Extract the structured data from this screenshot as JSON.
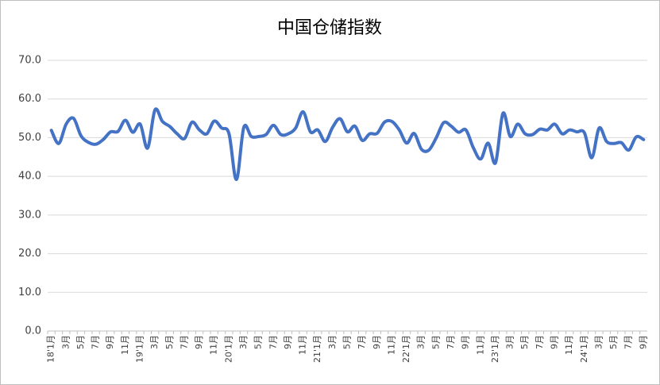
{
  "chart_data": {
    "type": "line",
    "title": "中国仓储指数",
    "categories": [
      "18'1月",
      null,
      "3月",
      null,
      "5月",
      null,
      "7月",
      null,
      "9月",
      null,
      "11月",
      null,
      "19'1月",
      null,
      "3月",
      null,
      "5月",
      null,
      "7月",
      null,
      "9月",
      null,
      "11月",
      null,
      "20'1月",
      null,
      "3月",
      null,
      "5月",
      null,
      "7月",
      null,
      "9月",
      null,
      "11月",
      null,
      "21'1月",
      null,
      "3月",
      null,
      "5月",
      null,
      "7月",
      null,
      "9月",
      null,
      "11月",
      null,
      "22'1月",
      null,
      "3月",
      null,
      "5月",
      null,
      "7月",
      null,
      "9月",
      null,
      "11月",
      null,
      "23'1月",
      null,
      "3月",
      null,
      "5月",
      null,
      "7月",
      null,
      "9月",
      null,
      "11月",
      null,
      "24'1月",
      null,
      "3月",
      null,
      "5月",
      null,
      "7月",
      null,
      "9月"
    ],
    "series": [
      {
        "name": "中国仓储指数",
        "color": "#4472c4",
        "values": [
          51.9,
          48.5,
          53.5,
          55.0,
          50.5,
          48.8,
          48.3,
          49.5,
          51.5,
          51.6,
          54.5,
          51.4,
          53.5,
          47.3,
          57.2,
          54.2,
          52.9,
          51.0,
          49.8,
          54.0,
          52.0,
          51.0,
          54.3,
          52.5,
          51.0,
          39.2,
          52.7,
          50.3,
          50.3,
          50.8,
          53.2,
          50.8,
          51.0,
          52.5,
          56.7,
          51.5,
          52.0,
          49.0,
          52.7,
          54.9,
          51.5,
          53.0,
          49.3,
          51.0,
          51.1,
          54.0,
          54.2,
          52.0,
          48.6,
          51.1,
          47.0,
          46.8,
          50.0,
          53.9,
          53.0,
          51.4,
          52.0,
          47.4,
          44.5,
          48.6,
          43.5,
          56.3,
          50.3,
          53.5,
          51.0,
          50.8,
          52.2,
          52.0,
          53.5,
          51.0,
          52.0,
          51.5,
          51.3,
          44.8,
          52.5,
          49.0,
          48.5,
          48.7,
          46.8,
          50.2,
          49.5
        ]
      }
    ],
    "ylim": [
      0,
      70
    ],
    "yticks": [
      {
        "value": 0,
        "label": "0.0"
      },
      {
        "value": 10,
        "label": "10.0"
      },
      {
        "value": 20,
        "label": "20.0"
      },
      {
        "value": 30,
        "label": "30.0"
      },
      {
        "value": 40,
        "label": "40.0"
      },
      {
        "value": 50,
        "label": "50.0"
      },
      {
        "value": 60,
        "label": "60.0"
      },
      {
        "value": 70,
        "label": "70.0"
      }
    ],
    "grid": true
  }
}
